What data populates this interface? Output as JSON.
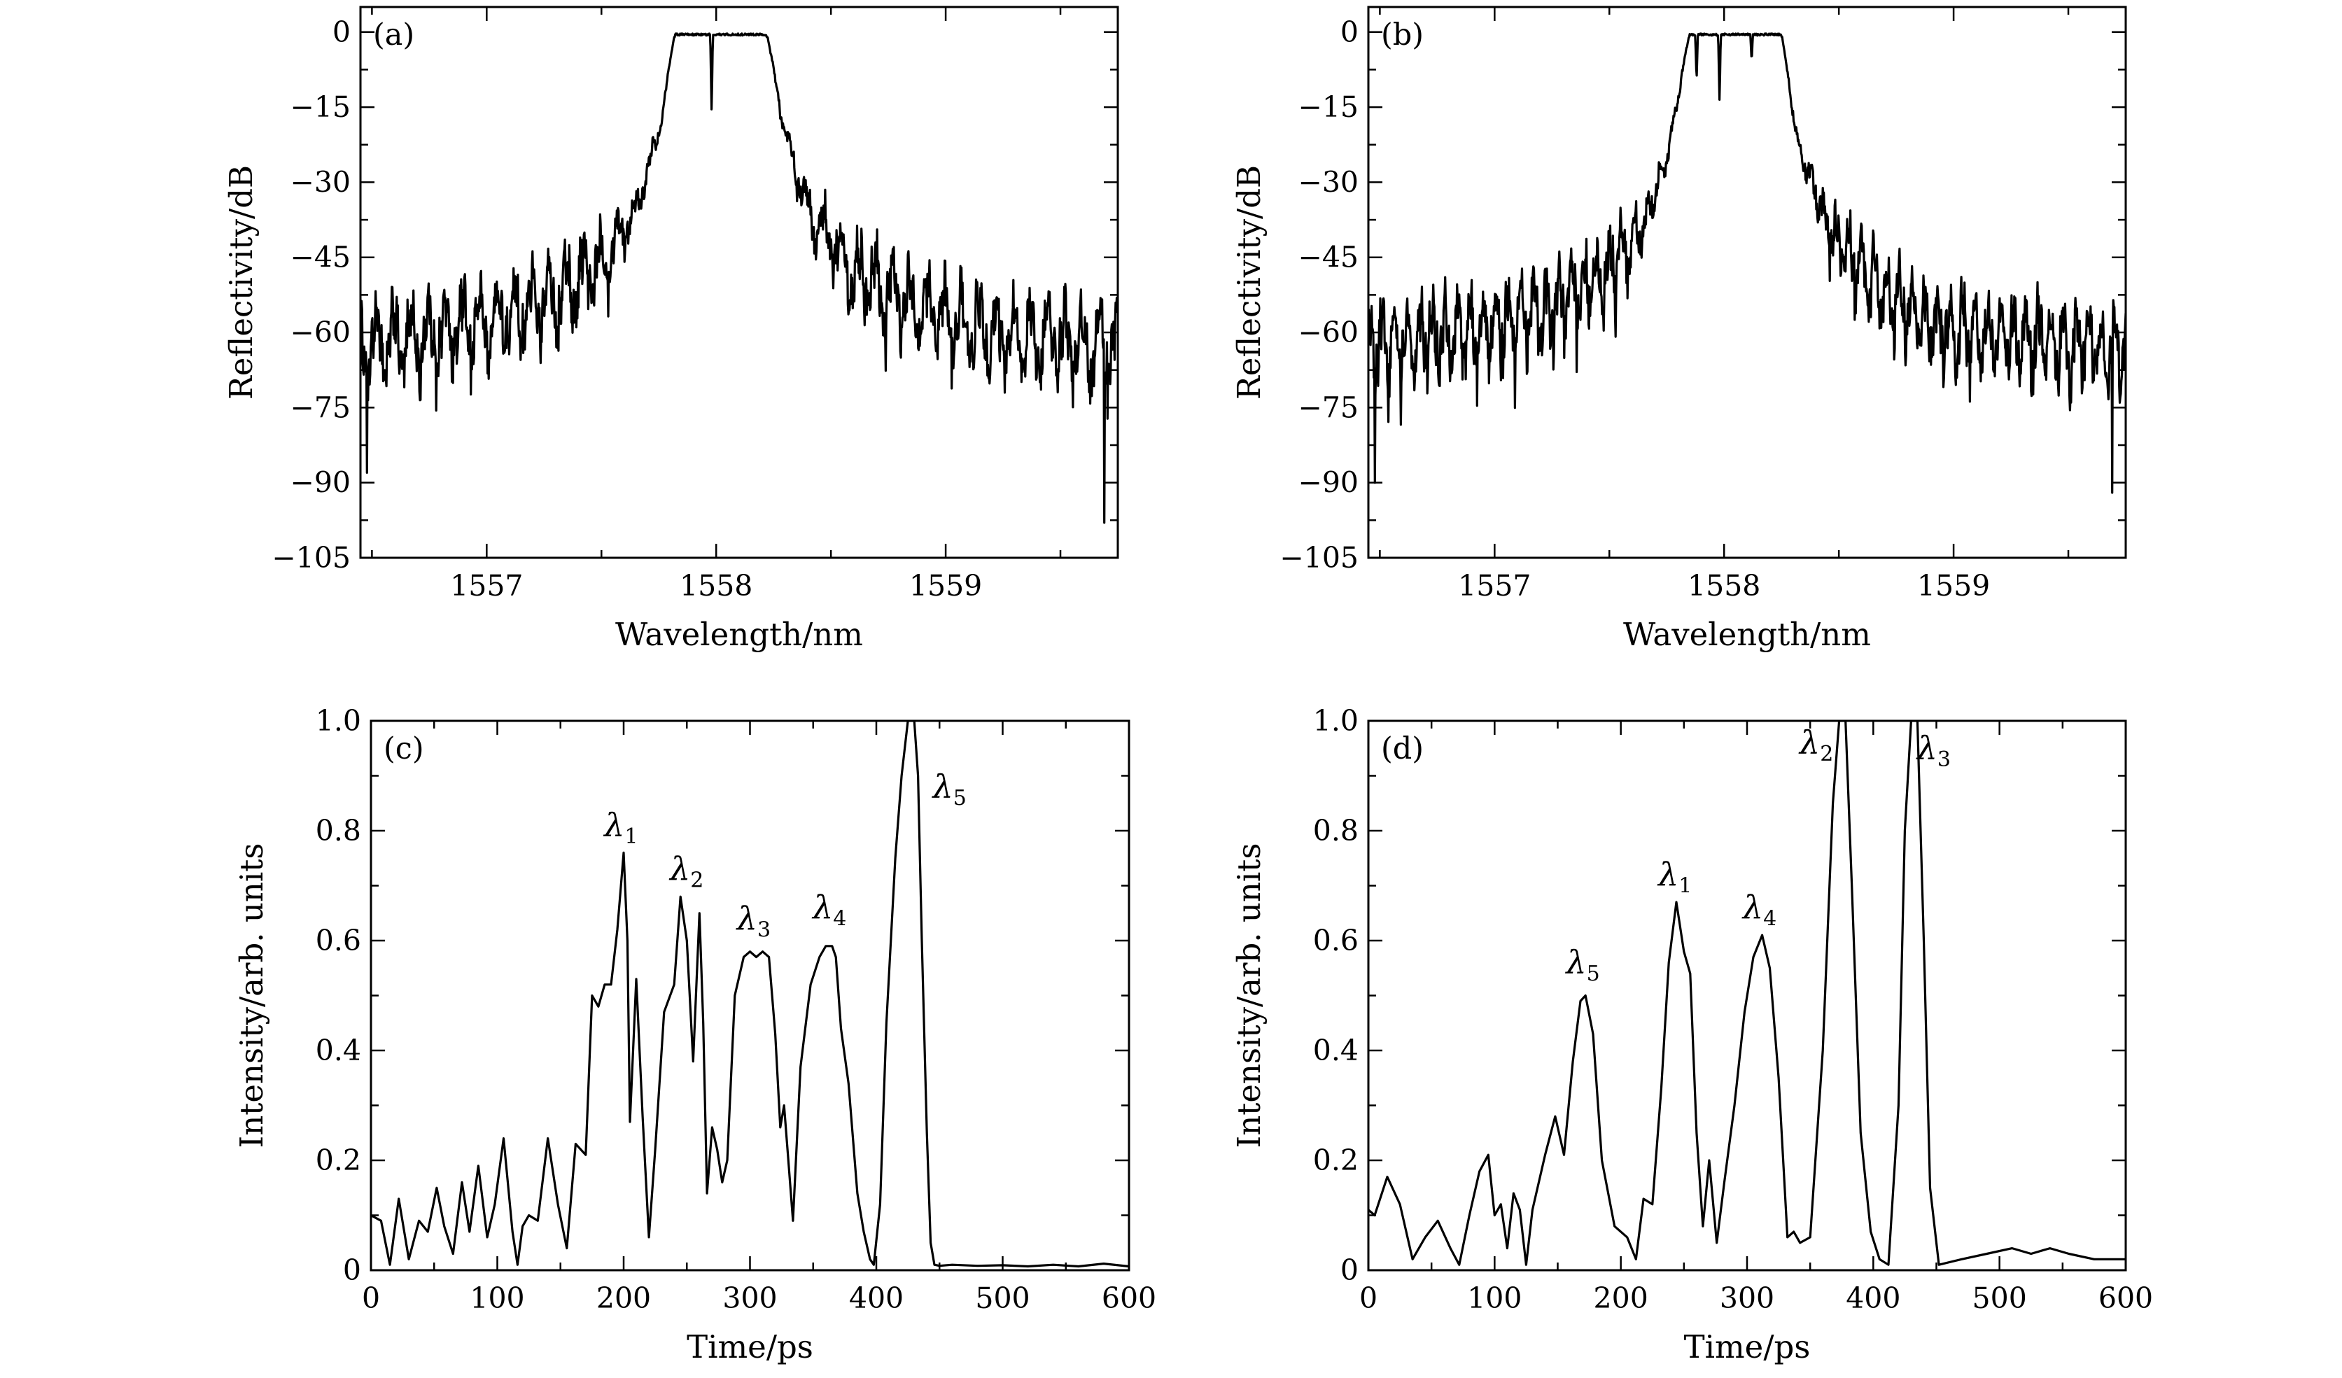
{
  "chart_data": [
    {
      "id": "a",
      "type": "line",
      "panel_label": "(a)",
      "xlabel": "Wavelength/nm",
      "ylabel": "Reflectivity/dB",
      "xlim": [
        1556.45,
        1559.75
      ],
      "ylim": [
        -105,
        5
      ],
      "xticks_major": [
        1557,
        1558,
        1559
      ],
      "xtick_labels": [
        "1557",
        "1558",
        "1559"
      ],
      "xticks_minor": [
        1556.5,
        1557.5,
        1558.5,
        1559.5
      ],
      "yticks": [
        0,
        -15,
        -30,
        -45,
        -60,
        -75,
        -90,
        -105
      ],
      "ytick_labels": [
        "0",
        "−15",
        "−30",
        "−45",
        "−60",
        "−75",
        "−90",
        "−105"
      ],
      "series": [
        {
          "name": "spectrum-a",
          "model": "fbg-spectrum",
          "center": 1558.02,
          "band": [
            1557.82,
            1558.22
          ],
          "notches": [
            {
              "x": 1557.98,
              "depth": -16
            }
          ],
          "ripple_period": 0.075,
          "edge_extremes": {
            "left": -88,
            "right": -98
          },
          "x": [
            1556.45,
            1556.7,
            1557.0,
            1557.3,
            1557.5,
            1557.65,
            1557.75,
            1557.82,
            1558.22,
            1558.3,
            1558.4,
            1558.6,
            1558.9,
            1559.2,
            1559.5,
            1559.75
          ],
          "y": [
            -62,
            -60,
            -57,
            -52,
            -45,
            -35,
            -20,
            0,
            0,
            -20,
            -35,
            -47,
            -55,
            -59,
            -61,
            -62
          ]
        }
      ]
    },
    {
      "id": "b",
      "type": "line",
      "panel_label": "(b)",
      "xlabel": "Wavelength/nm",
      "ylabel": "Reflectivity/dB",
      "xlim": [
        1556.45,
        1559.75
      ],
      "ylim": [
        -105,
        5
      ],
      "xticks_major": [
        1557,
        1558,
        1559
      ],
      "xtick_labels": [
        "1557",
        "1558",
        "1559"
      ],
      "xticks_minor": [
        1556.5,
        1557.5,
        1558.5,
        1559.5
      ],
      "yticks": [
        0,
        -15,
        -30,
        -45,
        -60,
        -75,
        -90,
        -105
      ],
      "ytick_labels": [
        "0",
        "−15",
        "−30",
        "−45",
        "−60",
        "−75",
        "−90",
        "−105"
      ],
      "series": [
        {
          "name": "spectrum-b",
          "model": "fbg-spectrum",
          "center": 1558.05,
          "band": [
            1557.85,
            1558.25
          ],
          "notches": [
            {
              "x": 1557.88,
              "depth": -10
            },
            {
              "x": 1557.98,
              "depth": -14
            },
            {
              "x": 1558.12,
              "depth": -6
            }
          ],
          "ripple_period": 0.055,
          "edge_extremes": {
            "left": -90,
            "right": -92
          },
          "x": [
            1556.45,
            1556.7,
            1557.0,
            1557.3,
            1557.5,
            1557.65,
            1557.75,
            1557.85,
            1558.25,
            1558.32,
            1558.45,
            1558.65,
            1558.9,
            1559.2,
            1559.5,
            1559.75
          ],
          "y": [
            -62,
            -60,
            -58,
            -53,
            -46,
            -38,
            -25,
            0,
            0,
            -22,
            -38,
            -50,
            -57,
            -60,
            -61,
            -62
          ]
        }
      ]
    },
    {
      "id": "c",
      "type": "line",
      "panel_label": "(c)",
      "xlabel": "Time/ps",
      "ylabel": "Intensity/arb. units",
      "xlim": [
        0,
        600
      ],
      "ylim": [
        0,
        1.0
      ],
      "xticks_major": [
        0,
        100,
        200,
        300,
        400,
        500,
        600
      ],
      "xtick_labels": [
        "0",
        "100",
        "200",
        "300",
        "400",
        "500",
        "600"
      ],
      "xticks_minor": [
        50,
        150,
        250,
        350,
        450,
        550
      ],
      "yticks": [
        0,
        0.2,
        0.4,
        0.6,
        0.8,
        1.0
      ],
      "ytick_labels": [
        "0",
        "0.2",
        "0.4",
        "0.6",
        "0.8",
        "1.0"
      ],
      "yticks_minor": [
        0.1,
        0.3,
        0.5,
        0.7,
        0.9
      ],
      "series": [
        {
          "name": "pulse-train-c",
          "x": [
            0,
            8,
            15,
            22,
            30,
            38,
            45,
            52,
            58,
            65,
            72,
            78,
            85,
            92,
            98,
            105,
            112,
            116,
            120,
            125,
            132,
            140,
            148,
            155,
            162,
            170,
            175,
            180,
            185,
            190,
            195,
            200,
            203,
            205,
            210,
            215,
            220,
            225,
            232,
            240,
            245,
            250,
            255,
            260,
            263,
            266,
            270,
            274,
            278,
            282,
            288,
            295,
            300,
            305,
            310,
            315,
            320,
            324,
            327,
            330,
            334,
            340,
            348,
            355,
            360,
            365,
            368,
            372,
            378,
            385,
            390,
            395,
            398,
            403,
            408,
            415,
            420,
            425,
            430,
            433,
            436,
            440,
            443,
            446,
            450,
            460,
            480,
            500,
            520,
            540,
            560,
            580,
            600
          ],
          "y": [
            0.1,
            0.09,
            0.01,
            0.13,
            0.02,
            0.09,
            0.07,
            0.15,
            0.08,
            0.03,
            0.16,
            0.07,
            0.19,
            0.06,
            0.12,
            0.24,
            0.07,
            0.01,
            0.08,
            0.1,
            0.09,
            0.24,
            0.12,
            0.04,
            0.23,
            0.21,
            0.5,
            0.48,
            0.52,
            0.52,
            0.62,
            0.76,
            0.6,
            0.27,
            0.53,
            0.28,
            0.06,
            0.22,
            0.47,
            0.52,
            0.68,
            0.6,
            0.38,
            0.65,
            0.45,
            0.14,
            0.26,
            0.22,
            0.16,
            0.2,
            0.5,
            0.57,
            0.58,
            0.57,
            0.58,
            0.57,
            0.43,
            0.26,
            0.3,
            0.21,
            0.09,
            0.37,
            0.52,
            0.57,
            0.59,
            0.59,
            0.57,
            0.44,
            0.34,
            0.14,
            0.07,
            0.02,
            0.01,
            0.12,
            0.45,
            0.75,
            0.9,
            1.0,
            1.0,
            0.9,
            0.6,
            0.25,
            0.05,
            0.01,
            0.008,
            0.01,
            0.008,
            0.009,
            0.007,
            0.01,
            0.007,
            0.012,
            0.007
          ]
        }
      ],
      "annotations": [
        {
          "main": "λ",
          "sub": "1",
          "x": 198,
          "y": 0.79
        },
        {
          "main": "λ",
          "sub": "2",
          "x": 250,
          "y": 0.71
        },
        {
          "main": "λ",
          "sub": "3",
          "x": 303,
          "y": 0.62
        },
        {
          "main": "λ",
          "sub": "4",
          "x": 363,
          "y": 0.64
        },
        {
          "main": "λ",
          "sub": "5",
          "x": 458,
          "y": 0.86
        }
      ]
    },
    {
      "id": "d",
      "type": "line",
      "panel_label": "(d)",
      "xlabel": "Time/ps",
      "ylabel": "Intensity/arb. units",
      "xlim": [
        0,
        600
      ],
      "ylim": [
        0,
        1.0
      ],
      "xticks_major": [
        0,
        100,
        200,
        300,
        400,
        500,
        600
      ],
      "xtick_labels": [
        "0",
        "100",
        "200",
        "300",
        "400",
        "500",
        "600"
      ],
      "xticks_minor": [
        50,
        150,
        250,
        350,
        450,
        550
      ],
      "yticks": [
        0,
        0.2,
        0.4,
        0.6,
        0.8,
        1.0
      ],
      "ytick_labels": [
        "0",
        "0.2",
        "0.4",
        "0.6",
        "0.8",
        "1.0"
      ],
      "yticks_minor": [
        0.1,
        0.3,
        0.5,
        0.7,
        0.9
      ],
      "series": [
        {
          "name": "pulse-train-d",
          "x": [
            0,
            5,
            15,
            25,
            35,
            45,
            55,
            65,
            72,
            80,
            88,
            95,
            100,
            105,
            110,
            115,
            120,
            125,
            130,
            140,
            148,
            155,
            162,
            168,
            172,
            178,
            185,
            195,
            205,
            212,
            218,
            225,
            232,
            238,
            244,
            250,
            255,
            260,
            265,
            270,
            276,
            282,
            290,
            298,
            305,
            312,
            318,
            325,
            332,
            337,
            342,
            350,
            360,
            368,
            373,
            378,
            383,
            390,
            398,
            405,
            412,
            420,
            425,
            430,
            435,
            440,
            445,
            452,
            470,
            490,
            510,
            525,
            540,
            555,
            575,
            600
          ],
          "y": [
            0.11,
            0.1,
            0.17,
            0.12,
            0.02,
            0.06,
            0.09,
            0.04,
            0.01,
            0.1,
            0.18,
            0.21,
            0.1,
            0.12,
            0.04,
            0.14,
            0.11,
            0.01,
            0.11,
            0.21,
            0.28,
            0.21,
            0.38,
            0.49,
            0.5,
            0.43,
            0.2,
            0.08,
            0.06,
            0.02,
            0.13,
            0.12,
            0.33,
            0.56,
            0.67,
            0.58,
            0.54,
            0.25,
            0.08,
            0.2,
            0.05,
            0.16,
            0.3,
            0.47,
            0.57,
            0.61,
            0.55,
            0.35,
            0.06,
            0.07,
            0.05,
            0.06,
            0.4,
            0.85,
            1.0,
            1.0,
            0.7,
            0.25,
            0.07,
            0.02,
            0.01,
            0.3,
            0.8,
            1.0,
            1.0,
            0.6,
            0.15,
            0.01,
            0.02,
            0.03,
            0.04,
            0.03,
            0.04,
            0.03,
            0.02,
            0.02
          ]
        }
      ],
      "annotations": [
        {
          "main": "λ",
          "sub": "5",
          "x": 170,
          "y": 0.54
        },
        {
          "main": "λ",
          "sub": "1",
          "x": 243,
          "y": 0.7
        },
        {
          "main": "λ",
          "sub": "4",
          "x": 310,
          "y": 0.64
        },
        {
          "main": "λ",
          "sub": "2",
          "x": 355,
          "y": 0.94
        },
        {
          "main": "λ",
          "sub": "3",
          "x": 448,
          "y": 0.93
        }
      ]
    }
  ]
}
